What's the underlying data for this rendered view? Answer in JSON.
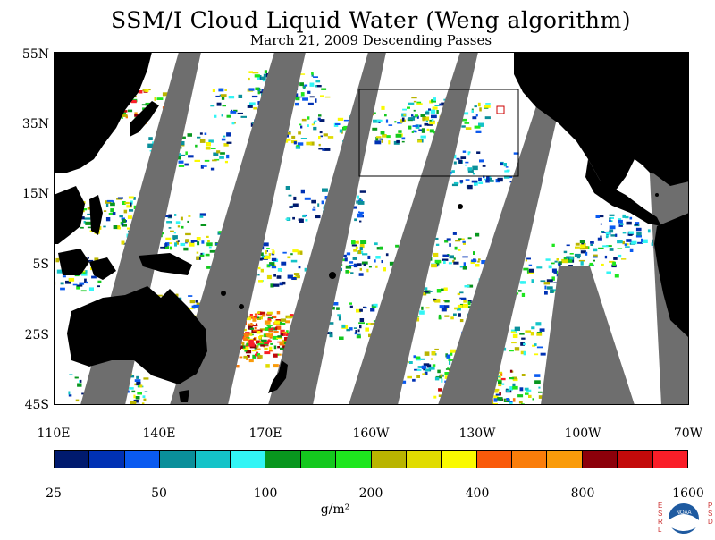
{
  "title": "SSM/I Cloud Liquid Water (Weng algorithm)",
  "subtitle": "March 21, 2009  Descending Passes",
  "lat_labels": [
    "55N",
    "35N",
    "15N",
    "5S",
    "25S",
    "45S"
  ],
  "lon_labels": [
    "110E",
    "140E",
    "170E",
    "160W",
    "130W",
    "100W",
    "70W"
  ],
  "colorbar": {
    "colors": [
      "#001a6e",
      "#0031b4",
      "#0a5af0",
      "#0a8f9a",
      "#14c3c8",
      "#32f5f5",
      "#08961e",
      "#14c81e",
      "#1ee61e",
      "#b9b400",
      "#e1dc00",
      "#fafa00",
      "#fa5a0a",
      "#fa7d0a",
      "#fa9b0a",
      "#8c000a",
      "#c30a0a",
      "#fa1e28"
    ],
    "tick_labels": [
      "25",
      "50",
      "100",
      "200",
      "400",
      "800",
      "1600"
    ],
    "units": "g/m²"
  },
  "map": {
    "ocean_color": "#ffffff",
    "land_color": "#000000",
    "no_data_color": "#6e6e6e",
    "box_color": "#000000"
  },
  "logo": {
    "left_letters": "ESRL",
    "right_letters": "PSD",
    "center_text": "NOAA"
  }
}
